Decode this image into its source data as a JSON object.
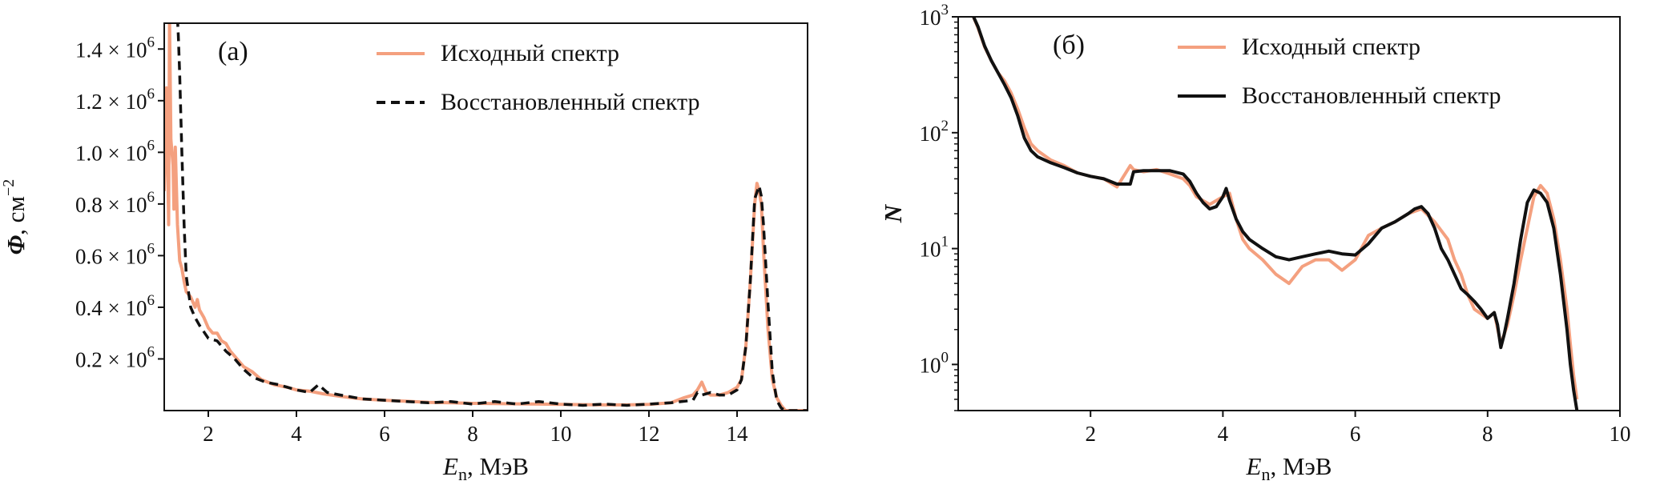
{
  "colors": {
    "original": "#f4a07f",
    "reconstructed": "#111111",
    "axes": "#111111",
    "background": "#ffffff"
  },
  "chart_data": [
    {
      "type": "line",
      "panel_label": "(а)",
      "xlabel_main": "E",
      "xlabel_sub": "n",
      "xlabel_rest": ", МэВ",
      "ylabel_main": "Φ",
      "ylabel_rest": ", см",
      "ylabel_sup": "−2",
      "xlim": [
        1.0,
        15.6
      ],
      "ylim": [
        0,
        1.5
      ],
      "y_scale_note": "values in units of 10^6",
      "x_ticks": [
        2,
        4,
        6,
        8,
        10,
        12,
        14
      ],
      "x_tick_labels": [
        "2",
        "4",
        "6",
        "8",
        "10",
        "12",
        "14"
      ],
      "y_ticks": [
        {
          "value": 0.2,
          "label": "0.2 × 10",
          "exp": "6"
        },
        {
          "value": 0.4,
          "label": "0.4 × 10",
          "exp": "6"
        },
        {
          "value": 0.6,
          "label": "0.6 × 10",
          "exp": "6"
        },
        {
          "value": 0.8,
          "label": "0.8 × 10",
          "exp": "6"
        },
        {
          "value": 1.0,
          "label": "1.0 × 10",
          "exp": "6"
        },
        {
          "value": 1.2,
          "label": "1.2 × 10",
          "exp": "6"
        },
        {
          "value": 1.4,
          "label": "1.4 × 10",
          "exp": "6"
        }
      ],
      "legend": {
        "position": "top-right",
        "entries": [
          "Исходный спектр",
          "Восстановленный спектр"
        ]
      },
      "series": [
        {
          "name": "Исходный спектр",
          "style": "solid",
          "x": [
            1.0,
            1.05,
            1.1,
            1.12,
            1.15,
            1.2,
            1.22,
            1.25,
            1.3,
            1.35,
            1.4,
            1.45,
            1.5,
            1.55,
            1.6,
            1.65,
            1.7,
            1.75,
            1.8,
            1.9,
            2.0,
            2.1,
            2.2,
            2.3,
            2.4,
            2.5,
            2.6,
            2.8,
            3.0,
            3.2,
            3.5,
            3.8,
            4.0,
            4.3,
            4.6,
            5.0,
            5.5,
            6.0,
            6.5,
            7.0,
            7.5,
            8.0,
            8.5,
            9.0,
            9.5,
            10.0,
            10.5,
            11.0,
            11.5,
            12.0,
            12.5,
            12.8,
            13.0,
            13.1,
            13.2,
            13.3,
            13.4,
            13.6,
            13.8,
            14.0,
            14.1,
            14.2,
            14.3,
            14.4,
            14.45,
            14.5,
            14.55,
            14.6,
            14.7,
            14.8,
            14.9,
            15.0,
            15.1,
            15.3,
            15.6
          ],
          "y": [
            0.85,
            1.25,
            0.72,
            1.52,
            1.05,
            0.95,
            0.78,
            1.02,
            0.72,
            0.58,
            0.55,
            0.5,
            0.46,
            0.45,
            0.44,
            0.42,
            0.4,
            0.43,
            0.39,
            0.36,
            0.32,
            0.3,
            0.3,
            0.27,
            0.26,
            0.23,
            0.21,
            0.17,
            0.15,
            0.12,
            0.1,
            0.09,
            0.08,
            0.075,
            0.065,
            0.055,
            0.045,
            0.04,
            0.036,
            0.032,
            0.03,
            0.028,
            0.027,
            0.026,
            0.025,
            0.024,
            0.023,
            0.022,
            0.022,
            0.024,
            0.03,
            0.05,
            0.06,
            0.08,
            0.11,
            0.07,
            0.06,
            0.06,
            0.07,
            0.09,
            0.12,
            0.25,
            0.5,
            0.8,
            0.88,
            0.85,
            0.8,
            0.62,
            0.32,
            0.12,
            0.05,
            0.02,
            0.0,
            0.0,
            0.0
          ]
        },
        {
          "name": "Восстановленный спектр",
          "style": "dashed",
          "x": [
            1.3,
            1.32,
            1.35,
            1.4,
            1.45,
            1.5,
            1.6,
            1.7,
            1.8,
            2.0,
            2.2,
            2.4,
            2.6,
            2.8,
            3.0,
            3.3,
            3.6,
            4.0,
            4.3,
            4.5,
            4.7,
            5.0,
            5.5,
            6.0,
            6.5,
            7.0,
            7.5,
            8.0,
            8.5,
            9.0,
            9.5,
            10.0,
            10.5,
            11.0,
            11.5,
            12.0,
            12.5,
            13.0,
            13.1,
            13.2,
            13.4,
            13.6,
            13.8,
            14.0,
            14.1,
            14.2,
            14.3,
            14.4,
            14.5,
            14.55,
            14.6,
            14.7,
            14.8,
            14.9,
            15.0,
            15.1,
            15.3,
            15.6
          ],
          "y": [
            1.52,
            1.45,
            1.3,
            1.0,
            0.72,
            0.52,
            0.4,
            0.36,
            0.33,
            0.28,
            0.27,
            0.23,
            0.2,
            0.16,
            0.13,
            0.11,
            0.1,
            0.08,
            0.07,
            0.1,
            0.07,
            0.06,
            0.045,
            0.04,
            0.035,
            0.03,
            0.035,
            0.025,
            0.035,
            0.025,
            0.035,
            0.025,
            0.02,
            0.025,
            0.02,
            0.025,
            0.03,
            0.04,
            0.07,
            0.06,
            0.07,
            0.06,
            0.06,
            0.08,
            0.12,
            0.25,
            0.5,
            0.82,
            0.87,
            0.83,
            0.72,
            0.42,
            0.15,
            0.04,
            0.01,
            0.0,
            0.0,
            0.0
          ]
        }
      ]
    },
    {
      "type": "line",
      "panel_label": "(б)",
      "xlabel_main": "E",
      "xlabel_sub": "n",
      "xlabel_rest": ", МэВ",
      "ylabel_main": "N",
      "xlim": [
        0.0,
        10.0
      ],
      "ylim": [
        0.4,
        1000
      ],
      "y_scale": "log",
      "x_ticks": [
        2,
        4,
        6,
        8,
        10
      ],
      "x_tick_labels": [
        "2",
        "4",
        "6",
        "8",
        "10"
      ],
      "y_ticks": [
        {
          "value": 1,
          "label": "10",
          "exp": "0"
        },
        {
          "value": 10,
          "label": "10",
          "exp": "1"
        },
        {
          "value": 100,
          "label": "10",
          "exp": "2"
        },
        {
          "value": 1000,
          "label": "10",
          "exp": "3"
        }
      ],
      "legend": {
        "position": "top-right",
        "entries": [
          "Исходный спектр",
          "Восстановленный спектр"
        ]
      },
      "series": [
        {
          "name": "Исходный спектр",
          "style": "solid",
          "x": [
            0.2,
            0.3,
            0.4,
            0.5,
            0.6,
            0.7,
            0.8,
            0.9,
            1.0,
            1.1,
            1.2,
            1.4,
            1.6,
            1.8,
            2.0,
            2.2,
            2.4,
            2.6,
            2.65,
            2.8,
            3.0,
            3.2,
            3.4,
            3.5,
            3.6,
            3.8,
            4.0,
            4.1,
            4.2,
            4.3,
            4.4,
            4.6,
            4.8,
            5.0,
            5.2,
            5.4,
            5.6,
            5.8,
            6.0,
            6.2,
            6.4,
            6.6,
            6.8,
            7.0,
            7.2,
            7.4,
            7.5,
            7.6,
            7.7,
            7.8,
            8.0,
            8.1,
            8.2,
            8.3,
            8.4,
            8.5,
            8.6,
            8.7,
            8.8,
            8.9,
            9.0,
            9.1,
            9.2,
            9.25,
            9.3,
            9.35
          ],
          "y": [
            1100,
            800,
            550,
            420,
            330,
            280,
            220,
            160,
            110,
            80,
            70,
            58,
            52,
            45,
            42,
            40,
            34,
            52,
            48,
            46,
            48,
            44,
            40,
            35,
            28,
            24,
            28,
            30,
            18,
            12,
            10,
            8,
            6,
            5,
            7,
            8,
            8,
            6.5,
            8,
            13,
            15,
            17,
            20,
            22,
            17,
            12,
            8,
            6,
            4,
            3,
            2.5,
            2.8,
            1.5,
            2.2,
            4,
            8,
            15,
            28,
            35,
            30,
            18,
            8,
            3,
            1.5,
            0.8,
            0.5
          ]
        },
        {
          "name": "Восстановленный спектр",
          "style": "solid",
          "x": [
            0.2,
            0.3,
            0.4,
            0.5,
            0.6,
            0.7,
            0.8,
            0.9,
            1.0,
            1.1,
            1.2,
            1.4,
            1.6,
            1.8,
            2.0,
            2.2,
            2.4,
            2.6,
            2.65,
            2.8,
            3.0,
            3.2,
            3.4,
            3.5,
            3.6,
            3.7,
            3.8,
            3.9,
            4.0,
            4.05,
            4.1,
            4.2,
            4.3,
            4.4,
            4.6,
            4.8,
            5.0,
            5.2,
            5.4,
            5.6,
            5.8,
            6.0,
            6.2,
            6.4,
            6.6,
            6.8,
            6.9,
            7.0,
            7.1,
            7.2,
            7.3,
            7.4,
            7.5,
            7.6,
            7.7,
            7.8,
            7.9,
            8.0,
            8.1,
            8.15,
            8.2,
            8.25,
            8.3,
            8.4,
            8.5,
            8.6,
            8.7,
            8.8,
            8.9,
            9.0,
            9.1,
            9.2,
            9.25,
            9.3,
            9.35
          ],
          "y": [
            1100,
            820,
            560,
            420,
            330,
            260,
            200,
            140,
            90,
            70,
            62,
            55,
            50,
            45,
            42,
            40,
            36,
            36,
            46,
            47,
            47,
            47,
            44,
            38,
            30,
            25,
            22,
            23,
            28,
            33,
            26,
            18,
            14,
            12,
            10,
            8.5,
            8,
            8.5,
            9,
            9.5,
            9,
            8.8,
            11,
            15,
            17,
            20,
            22,
            23,
            20,
            15,
            10,
            8,
            6,
            4.5,
            4,
            3.5,
            3,
            2.5,
            2.8,
            2.2,
            1.4,
            1.8,
            2.5,
            5,
            12,
            25,
            32,
            30,
            25,
            15,
            6,
            2,
            1,
            0.6,
            0.4
          ]
        }
      ]
    }
  ]
}
